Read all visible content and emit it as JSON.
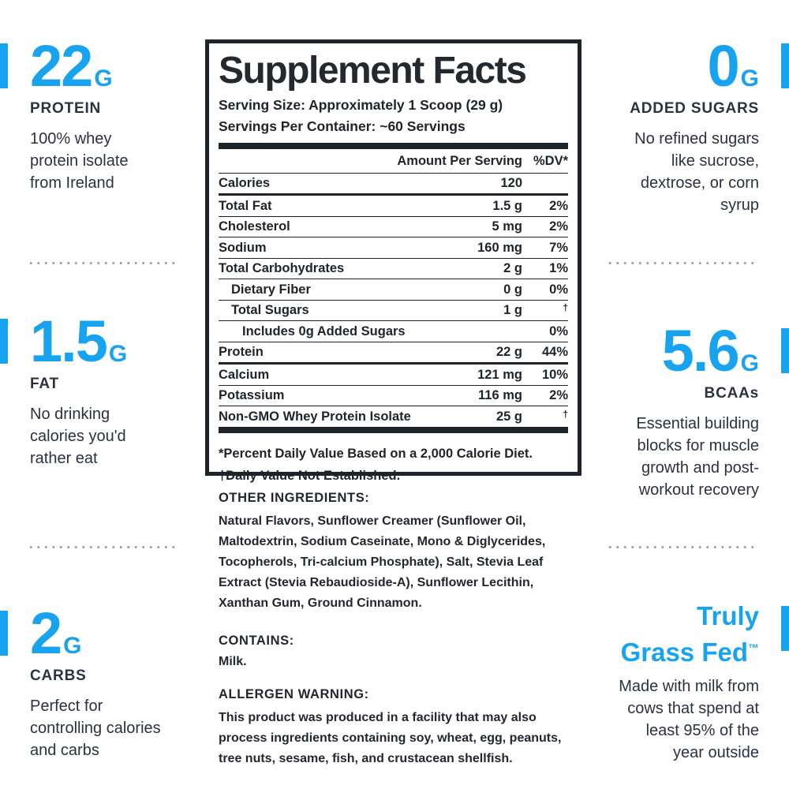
{
  "colors": {
    "accent_blue": "#18a3f0",
    "dark_text": "#2b3140",
    "panel_black": "#1f242b",
    "divider_gray": "#9ba0a9"
  },
  "callouts": {
    "left": [
      {
        "value": "22",
        "unit": "G",
        "label": "PROTEIN",
        "description": "100% whey protein isolate from Ireland"
      },
      {
        "value": "1.5",
        "unit": "G",
        "label": "FAT",
        "description": "No drinking calories you'd rather eat"
      },
      {
        "value": "2",
        "unit": "G",
        "label": "CARBS",
        "description": "Perfect for controlling calories and carbs"
      }
    ],
    "right": [
      {
        "value": "0",
        "unit": "G",
        "label": "ADDED SUGARS",
        "description": "No refined sugars like sucrose, dextrose, or corn syrup"
      },
      {
        "value": "5.6",
        "unit": "G",
        "label": "BCAAs",
        "description": "Essential building blocks for muscle growth and post-workout recovery"
      },
      {
        "headline_line1": "Truly",
        "headline_line2": "Grass Fed",
        "trademark": "™",
        "description": "Made with milk from cows that spend at least 95% of the year outside"
      }
    ]
  },
  "panel": {
    "title": "Supplement Facts",
    "serving_size": "Serving Size: Approximately 1 Scoop (29 g)",
    "servings_per_container": "Servings Per Container: ~60 Servings",
    "col_amount": "Amount Per Serving",
    "col_dv": "%DV*",
    "rows": [
      {
        "label": "Calories",
        "amount": "120",
        "dv": "",
        "indent": 0,
        "rule": "medium"
      },
      {
        "label": "Total Fat",
        "amount": "1.5 g",
        "dv": "2%",
        "indent": 0,
        "rule": "thin"
      },
      {
        "label": "Cholesterol",
        "amount": "5 mg",
        "dv": "2%",
        "indent": 0,
        "rule": "thin"
      },
      {
        "label": "Sodium",
        "amount": "160 mg",
        "dv": "7%",
        "indent": 0,
        "rule": "thin"
      },
      {
        "label": "Total Carbohydrates",
        "amount": "2 g",
        "dv": "1%",
        "indent": 0,
        "rule": "thin"
      },
      {
        "label": "Dietary Fiber",
        "amount": "0 g",
        "dv": "0%",
        "indent": 1,
        "rule": "thin"
      },
      {
        "label": "Total Sugars",
        "amount": "1 g",
        "dv": "†",
        "indent": 1,
        "rule": "thin"
      },
      {
        "label": "Includes 0g Added Sugars",
        "amount": "",
        "dv": "0%",
        "indent": 2,
        "rule": "thin"
      },
      {
        "label": "Protein",
        "amount": "22 g",
        "dv": "44%",
        "indent": 0,
        "rule": "medium"
      },
      {
        "label": "Calcium",
        "amount": "121 mg",
        "dv": "10%",
        "indent": 0,
        "rule": "thin"
      },
      {
        "label": "Potassium",
        "amount": "116 mg",
        "dv": "2%",
        "indent": 0,
        "rule": "thin"
      },
      {
        "label": "Non-GMO Whey Protein Isolate",
        "amount": "25 g",
        "dv": "†",
        "indent": 0,
        "rule": "none"
      }
    ],
    "footnote_dv": "*Percent Daily Value Based on a 2,000 Calorie Diet.",
    "footnote_dagger": "†Daily Value Not Established."
  },
  "bottom": {
    "other_ingredients_heading": "OTHER INGREDIENTS:",
    "other_ingredients_text": "Natural Flavors, Sunflower Creamer (Sunflower Oil, Maltodextrin, Sodium Caseinate, Mono & Diglycerides, Tocopherols, Tri-calcium Phosphate), Salt, Stevia Leaf Extract (Stevia Rebaudioside-A), Sunflower Lecithin, Xanthan Gum, Ground Cinnamon.",
    "contains_heading": "CONTAINS:",
    "contains_text": "Milk.",
    "allergen_heading": "ALLERGEN WARNING:",
    "allergen_text": "This product was produced in a facility that may also process ingredients containing soy, wheat, egg, peanuts, tree nuts, sesame, fish, and crustacean shellfish."
  }
}
